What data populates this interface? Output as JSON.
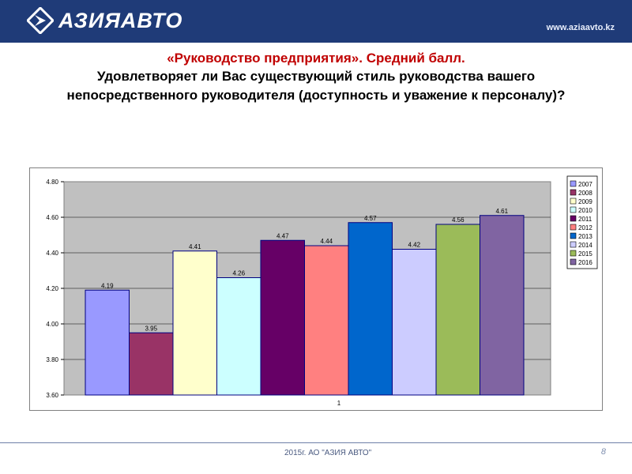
{
  "header": {
    "logo_text": "АЗИЯАВТО",
    "site_url": "www.aziaavto.kz",
    "brand_color": "#1f3b78"
  },
  "titles": {
    "line1": "«Руководство предприятия». Средний балл.",
    "line2": "Удовлетворяет ли Вас существующий стиль руководства вашего непосредственного руководителя (доступность и уважение к персоналу)?"
  },
  "chart_data": {
    "type": "bar",
    "categories": [
      "1"
    ],
    "series": [
      {
        "name": "2007",
        "values": [
          4.19
        ],
        "color": "#9999ff"
      },
      {
        "name": "2008",
        "values": [
          3.95
        ],
        "color": "#993366"
      },
      {
        "name": "2009",
        "values": [
          4.41
        ],
        "color": "#ffffcc"
      },
      {
        "name": "2010",
        "values": [
          4.26
        ],
        "color": "#ccffff"
      },
      {
        "name": "2011",
        "values": [
          4.47
        ],
        "color": "#660066"
      },
      {
        "name": "2012",
        "values": [
          4.44
        ],
        "color": "#ff8080"
      },
      {
        "name": "2013",
        "values": [
          4.57
        ],
        "color": "#0066cc"
      },
      {
        "name": "2014",
        "values": [
          4.42
        ],
        "color": "#ccccff"
      },
      {
        "name": "2015",
        "values": [
          4.56
        ],
        "color": "#9bbb59"
      },
      {
        "name": "2016",
        "values": [
          4.61
        ],
        "color": "#8064a2"
      }
    ],
    "data_labels": [
      "4.19",
      "3.95",
      "4.41",
      "4.26",
      "4.47",
      "4.44",
      "4.57",
      "4.42",
      "4.56",
      "4.61"
    ],
    "yticks": [
      "3.60",
      "3.80",
      "4.00",
      "4.20",
      "4.40",
      "4.60",
      "4.80"
    ],
    "ylim": [
      3.6,
      4.8
    ],
    "legend_position": "right",
    "plot_background": "#c0c0c0",
    "grid": true
  },
  "footer": {
    "text": "2015г. АО \"АЗИЯ АВТО\"",
    "page_number": "8"
  }
}
